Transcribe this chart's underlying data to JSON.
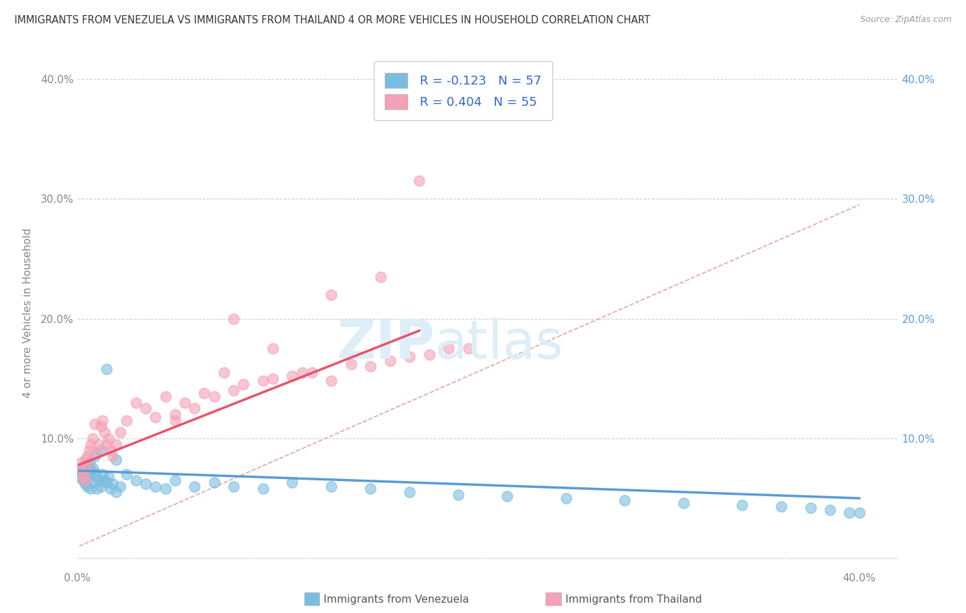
{
  "title": "IMMIGRANTS FROM VENEZUELA VS IMMIGRANTS FROM THAILAND 4 OR MORE VEHICLES IN HOUSEHOLD CORRELATION CHART",
  "source": "Source: ZipAtlas.com",
  "ylabel": "4 or more Vehicles in Household",
  "xlim": [
    0.0,
    0.42
  ],
  "ylim": [
    -0.01,
    0.42
  ],
  "ytick_vals": [
    0.0,
    0.1,
    0.2,
    0.3,
    0.4
  ],
  "ytick_labels_left": [
    "",
    "10.0%",
    "20.0%",
    "30.0%",
    "40.0%"
  ],
  "ytick_labels_right": [
    "",
    "10.0%",
    "20.0%",
    "30.0%",
    "40.0%"
  ],
  "xtick_vals": [
    0.0,
    0.4
  ],
  "xtick_labels": [
    "0.0%",
    "40.0%"
  ],
  "color_venezuela": "#7bbde0",
  "color_thailand": "#f4a0b5",
  "color_venezuela_line": "#5b9bd5",
  "color_thailand_line": "#e8536a",
  "color_dashed": "#d4868a",
  "color_grid": "#d0d0d0",
  "color_right_axis": "#5b9bd5",
  "color_left_axis": "#888888",
  "watermark_color": "#ddeef8",
  "venezuela_x": [
    0.001,
    0.002,
    0.003,
    0.003,
    0.004,
    0.004,
    0.005,
    0.005,
    0.006,
    0.006,
    0.007,
    0.007,
    0.008,
    0.008,
    0.009,
    0.01,
    0.01,
    0.011,
    0.012,
    0.013,
    0.014,
    0.015,
    0.016,
    0.017,
    0.018,
    0.02,
    0.022,
    0.025,
    0.03,
    0.035,
    0.04,
    0.045,
    0.05,
    0.06,
    0.07,
    0.08,
    0.095,
    0.11,
    0.13,
    0.15,
    0.17,
    0.195,
    0.22,
    0.25,
    0.28,
    0.31,
    0.34,
    0.36,
    0.375,
    0.385,
    0.395,
    0.4,
    0.015,
    0.012,
    0.009,
    0.006,
    0.02
  ],
  "venezuela_y": [
    0.068,
    0.072,
    0.075,
    0.065,
    0.078,
    0.062,
    0.07,
    0.06,
    0.08,
    0.068,
    0.073,
    0.058,
    0.075,
    0.063,
    0.071,
    0.068,
    0.058,
    0.065,
    0.06,
    0.07,
    0.065,
    0.063,
    0.068,
    0.058,
    0.062,
    0.055,
    0.06,
    0.07,
    0.065,
    0.062,
    0.06,
    0.058,
    0.065,
    0.06,
    0.063,
    0.06,
    0.058,
    0.063,
    0.06,
    0.058,
    0.055,
    0.053,
    0.052,
    0.05,
    0.048,
    0.046,
    0.044,
    0.043,
    0.042,
    0.04,
    0.038,
    0.038,
    0.158,
    0.09,
    0.085,
    0.075,
    0.082
  ],
  "thailand_x": [
    0.001,
    0.002,
    0.003,
    0.003,
    0.004,
    0.004,
    0.005,
    0.005,
    0.006,
    0.007,
    0.008,
    0.009,
    0.01,
    0.011,
    0.012,
    0.013,
    0.014,
    0.015,
    0.016,
    0.017,
    0.018,
    0.02,
    0.022,
    0.025,
    0.03,
    0.035,
    0.04,
    0.045,
    0.05,
    0.055,
    0.065,
    0.075,
    0.085,
    0.1,
    0.115,
    0.13,
    0.15,
    0.17,
    0.19,
    0.05,
    0.06,
    0.08,
    0.095,
    0.11,
    0.14,
    0.16,
    0.18,
    0.07,
    0.12,
    0.2,
    0.08,
    0.1,
    0.13,
    0.155,
    0.175
  ],
  "thailand_y": [
    0.075,
    0.08,
    0.072,
    0.068,
    0.082,
    0.065,
    0.085,
    0.078,
    0.09,
    0.095,
    0.1,
    0.112,
    0.088,
    0.095,
    0.11,
    0.115,
    0.105,
    0.095,
    0.1,
    0.09,
    0.085,
    0.095,
    0.105,
    0.115,
    0.13,
    0.125,
    0.118,
    0.135,
    0.12,
    0.13,
    0.138,
    0.155,
    0.145,
    0.15,
    0.155,
    0.148,
    0.16,
    0.168,
    0.175,
    0.115,
    0.125,
    0.14,
    0.148,
    0.152,
    0.162,
    0.165,
    0.17,
    0.135,
    0.155,
    0.175,
    0.2,
    0.175,
    0.22,
    0.235,
    0.315
  ],
  "ven_line_x": [
    0.001,
    0.4
  ],
  "ven_line_y": [
    0.073,
    0.05
  ],
  "tha_line_x": [
    0.001,
    0.175
  ],
  "tha_line_y": [
    0.078,
    0.19
  ],
  "dash_line_x": [
    0.001,
    0.4
  ],
  "dash_line_y": [
    0.01,
    0.295
  ]
}
